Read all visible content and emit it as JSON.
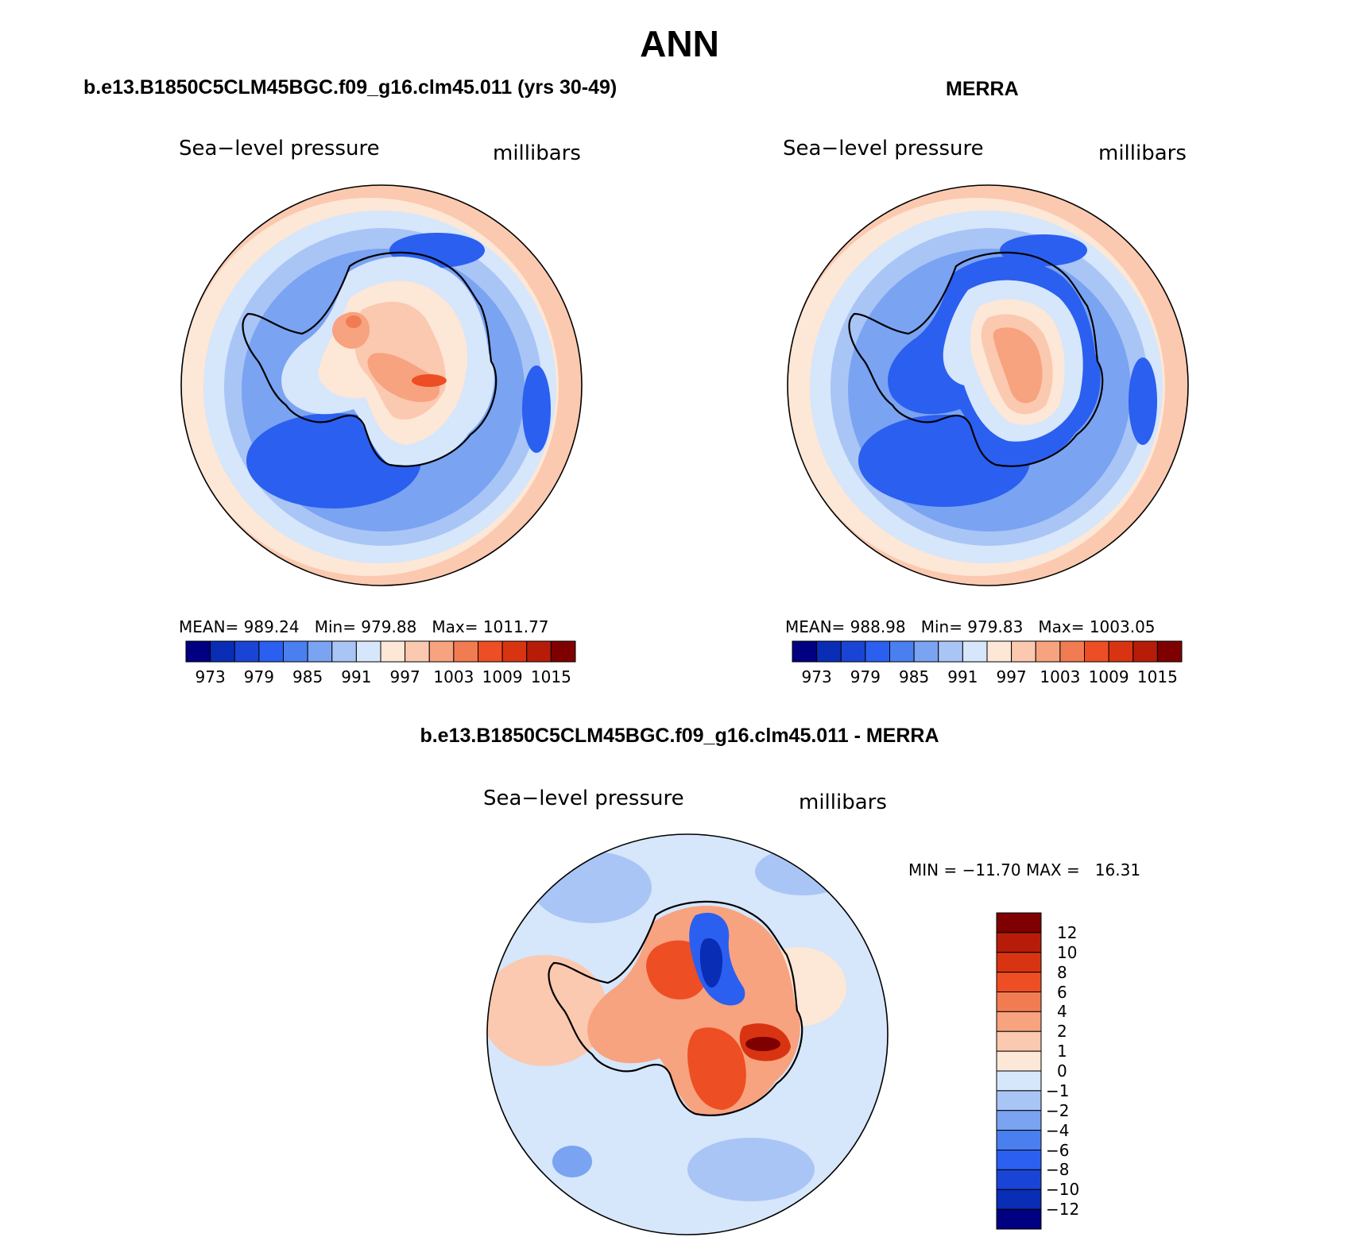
{
  "title": "ANN",
  "colors": {
    "abs_scale": [
      "#000080",
      "#0a2db6",
      "#1a44d6",
      "#2b5ff0",
      "#4a7ff0",
      "#7aa3f2",
      "#a9c5f6",
      "#d6e6fb",
      "#fde7d6",
      "#fbc9af",
      "#f7a37f",
      "#f27c52",
      "#ee4e23",
      "#d93411",
      "#b71c08",
      "#7f0000"
    ],
    "diff_scale": [
      "#000080",
      "#0a2db6",
      "#1a44d6",
      "#2b5ff0",
      "#4a7ff0",
      "#7aa3f2",
      "#a9c5f6",
      "#d6e6fb",
      "#fde7d6",
      "#fbc9af",
      "#f7a37f",
      "#f27c52",
      "#ee4e23",
      "#d93411",
      "#b71c08",
      "#7f0000"
    ]
  },
  "panels": {
    "model": {
      "title": "b.e13.B1850C5CLM45BGC.f09_g16.clm45.011 (yrs 30-49)",
      "variable": "Sea−level pressure",
      "units": "millibars",
      "stats": "MEAN= 989.24   Min= 979.88   Max= 1011.77",
      "colorbar_labels": [
        "973",
        "979",
        "985",
        "991",
        "997",
        "1003",
        "1009",
        "1015"
      ]
    },
    "obs": {
      "title": "MERRA",
      "variable": "Sea−level pressure",
      "units": "millibars",
      "stats": "MEAN= 988.98   Min= 979.83   Max= 1003.05",
      "colorbar_labels": [
        "973",
        "979",
        "985",
        "991",
        "997",
        "1003",
        "1009",
        "1015"
      ]
    },
    "diff": {
      "title": "b.e13.B1850C5CLM45BGC.f09_g16.clm45.011 - MERRA",
      "variable": "Sea−level pressure",
      "units": "millibars",
      "stats": "MIN = −11.70 MAX =   16.31",
      "colorbar_labels": [
        "12",
        "10",
        "8",
        "6",
        "4",
        "2",
        "1",
        "0",
        "−1",
        "−2",
        "−4",
        "−6",
        "−8",
        "−10",
        "−12"
      ]
    }
  },
  "chart_data": [
    {
      "type": "heatmap",
      "title": "b.e13.B1850C5CLM45BGC.f09_g16.clm45.011 (yrs 30-49)",
      "field": "Sea-level pressure",
      "units": "millibars",
      "projection": "south polar stereographic",
      "mean": 989.24,
      "min": 979.88,
      "max": 1011.77,
      "contour_levels": [
        973,
        976,
        979,
        982,
        985,
        988,
        991,
        994,
        997,
        1000,
        1003,
        1006,
        1009,
        1012,
        1015
      ]
    },
    {
      "type": "heatmap",
      "title": "MERRA",
      "field": "Sea-level pressure",
      "units": "millibars",
      "projection": "south polar stereographic",
      "mean": 988.98,
      "min": 979.83,
      "max": 1003.05,
      "contour_levels": [
        973,
        976,
        979,
        982,
        985,
        988,
        991,
        994,
        997,
        1000,
        1003,
        1006,
        1009,
        1012,
        1015
      ]
    },
    {
      "type": "heatmap",
      "title": "b.e13.B1850C5CLM45BGC.f09_g16.clm45.011 - MERRA",
      "field": "Sea-level pressure",
      "units": "millibars",
      "projection": "south polar stereographic",
      "min": -11.7,
      "max": 16.31,
      "contour_levels": [
        -12,
        -10,
        -8,
        -6,
        -4,
        -2,
        -1,
        0,
        1,
        2,
        4,
        6,
        8,
        10,
        12
      ]
    }
  ]
}
